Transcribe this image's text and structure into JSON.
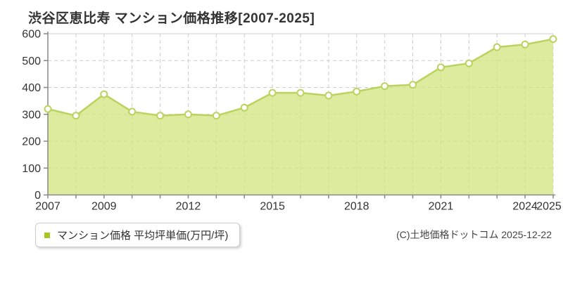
{
  "title": "渋谷区恵比寿 マンション価格推移[2007-2025]",
  "legend": {
    "label": "マンション価格 平均坪単価(万円/坪)",
    "marker_color": "#a3c71f"
  },
  "copyright": "(C)土地価格ドットコム 2025-12-22",
  "chart_data": {
    "type": "area",
    "title": "渋谷区恵比寿 マンション価格推移[2007-2025]",
    "x": [
      2007,
      2008,
      2009,
      2010,
      2011,
      2012,
      2013,
      2014,
      2015,
      2016,
      2017,
      2018,
      2019,
      2020,
      2021,
      2022,
      2023,
      2024,
      2025
    ],
    "series": [
      {
        "name": "マンション価格 平均坪単価(万円/坪)",
        "values": [
          320,
          295,
          375,
          310,
          295,
          300,
          295,
          325,
          380,
          380,
          370,
          385,
          405,
          410,
          475,
          490,
          550,
          560,
          580
        ]
      }
    ],
    "xlabel": "",
    "ylabel": "",
    "ylim": [
      0,
      600
    ],
    "ytick_interval": 100,
    "x_labeled": [
      2007,
      2009,
      2012,
      2015,
      2018,
      2021,
      2024,
      2025
    ],
    "grid": "dashed",
    "legend_position": "bottom-left",
    "colors": {
      "line": "#b9d45e",
      "fill": "#d2e47e",
      "fill_opacity": 0.75,
      "marker_fill": "#ffffff",
      "grid": "#cccccc",
      "axis": "#888888",
      "text": "#333333"
    }
  }
}
